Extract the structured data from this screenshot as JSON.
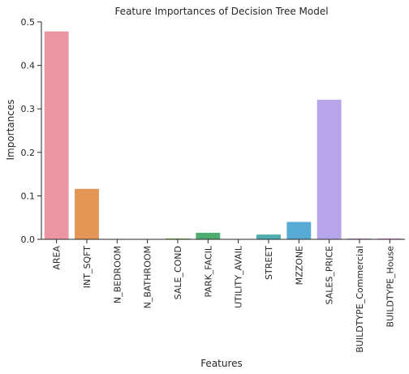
{
  "chart_data": {
    "type": "bar",
    "title": "Feature Importances of Decision Tree Model",
    "xlabel": "Features",
    "ylabel": "Importances",
    "ylim": [
      0,
      0.5
    ],
    "yticks": [
      "0.0",
      "0.1",
      "0.2",
      "0.3",
      "0.4",
      "0.5"
    ],
    "grid": false,
    "categories": [
      "AREA",
      "INT_SQFT",
      "N_BEDROOM",
      "N_BATHROOM",
      "SALE_COND",
      "PARK_FACIL",
      "UTILITY_AVAIL",
      "STREET",
      "MZZONE",
      "SALES_PRICE",
      "BUILDTYPE_Commercial",
      "BUILDTYPE_House"
    ],
    "values": [
      0.478,
      0.116,
      0.0005,
      0.0005,
      0.002,
      0.015,
      0.0005,
      0.011,
      0.04,
      0.321,
      0.002,
      0.002
    ],
    "colors": [
      "#ea96a3",
      "#e39656",
      "#c2a34b",
      "#a9ab47",
      "#79b447",
      "#4dac6f",
      "#4daf96",
      "#4dadb0",
      "#57abd4",
      "#b7a5ea",
      "#d695e6",
      "#e98ccc"
    ]
  }
}
